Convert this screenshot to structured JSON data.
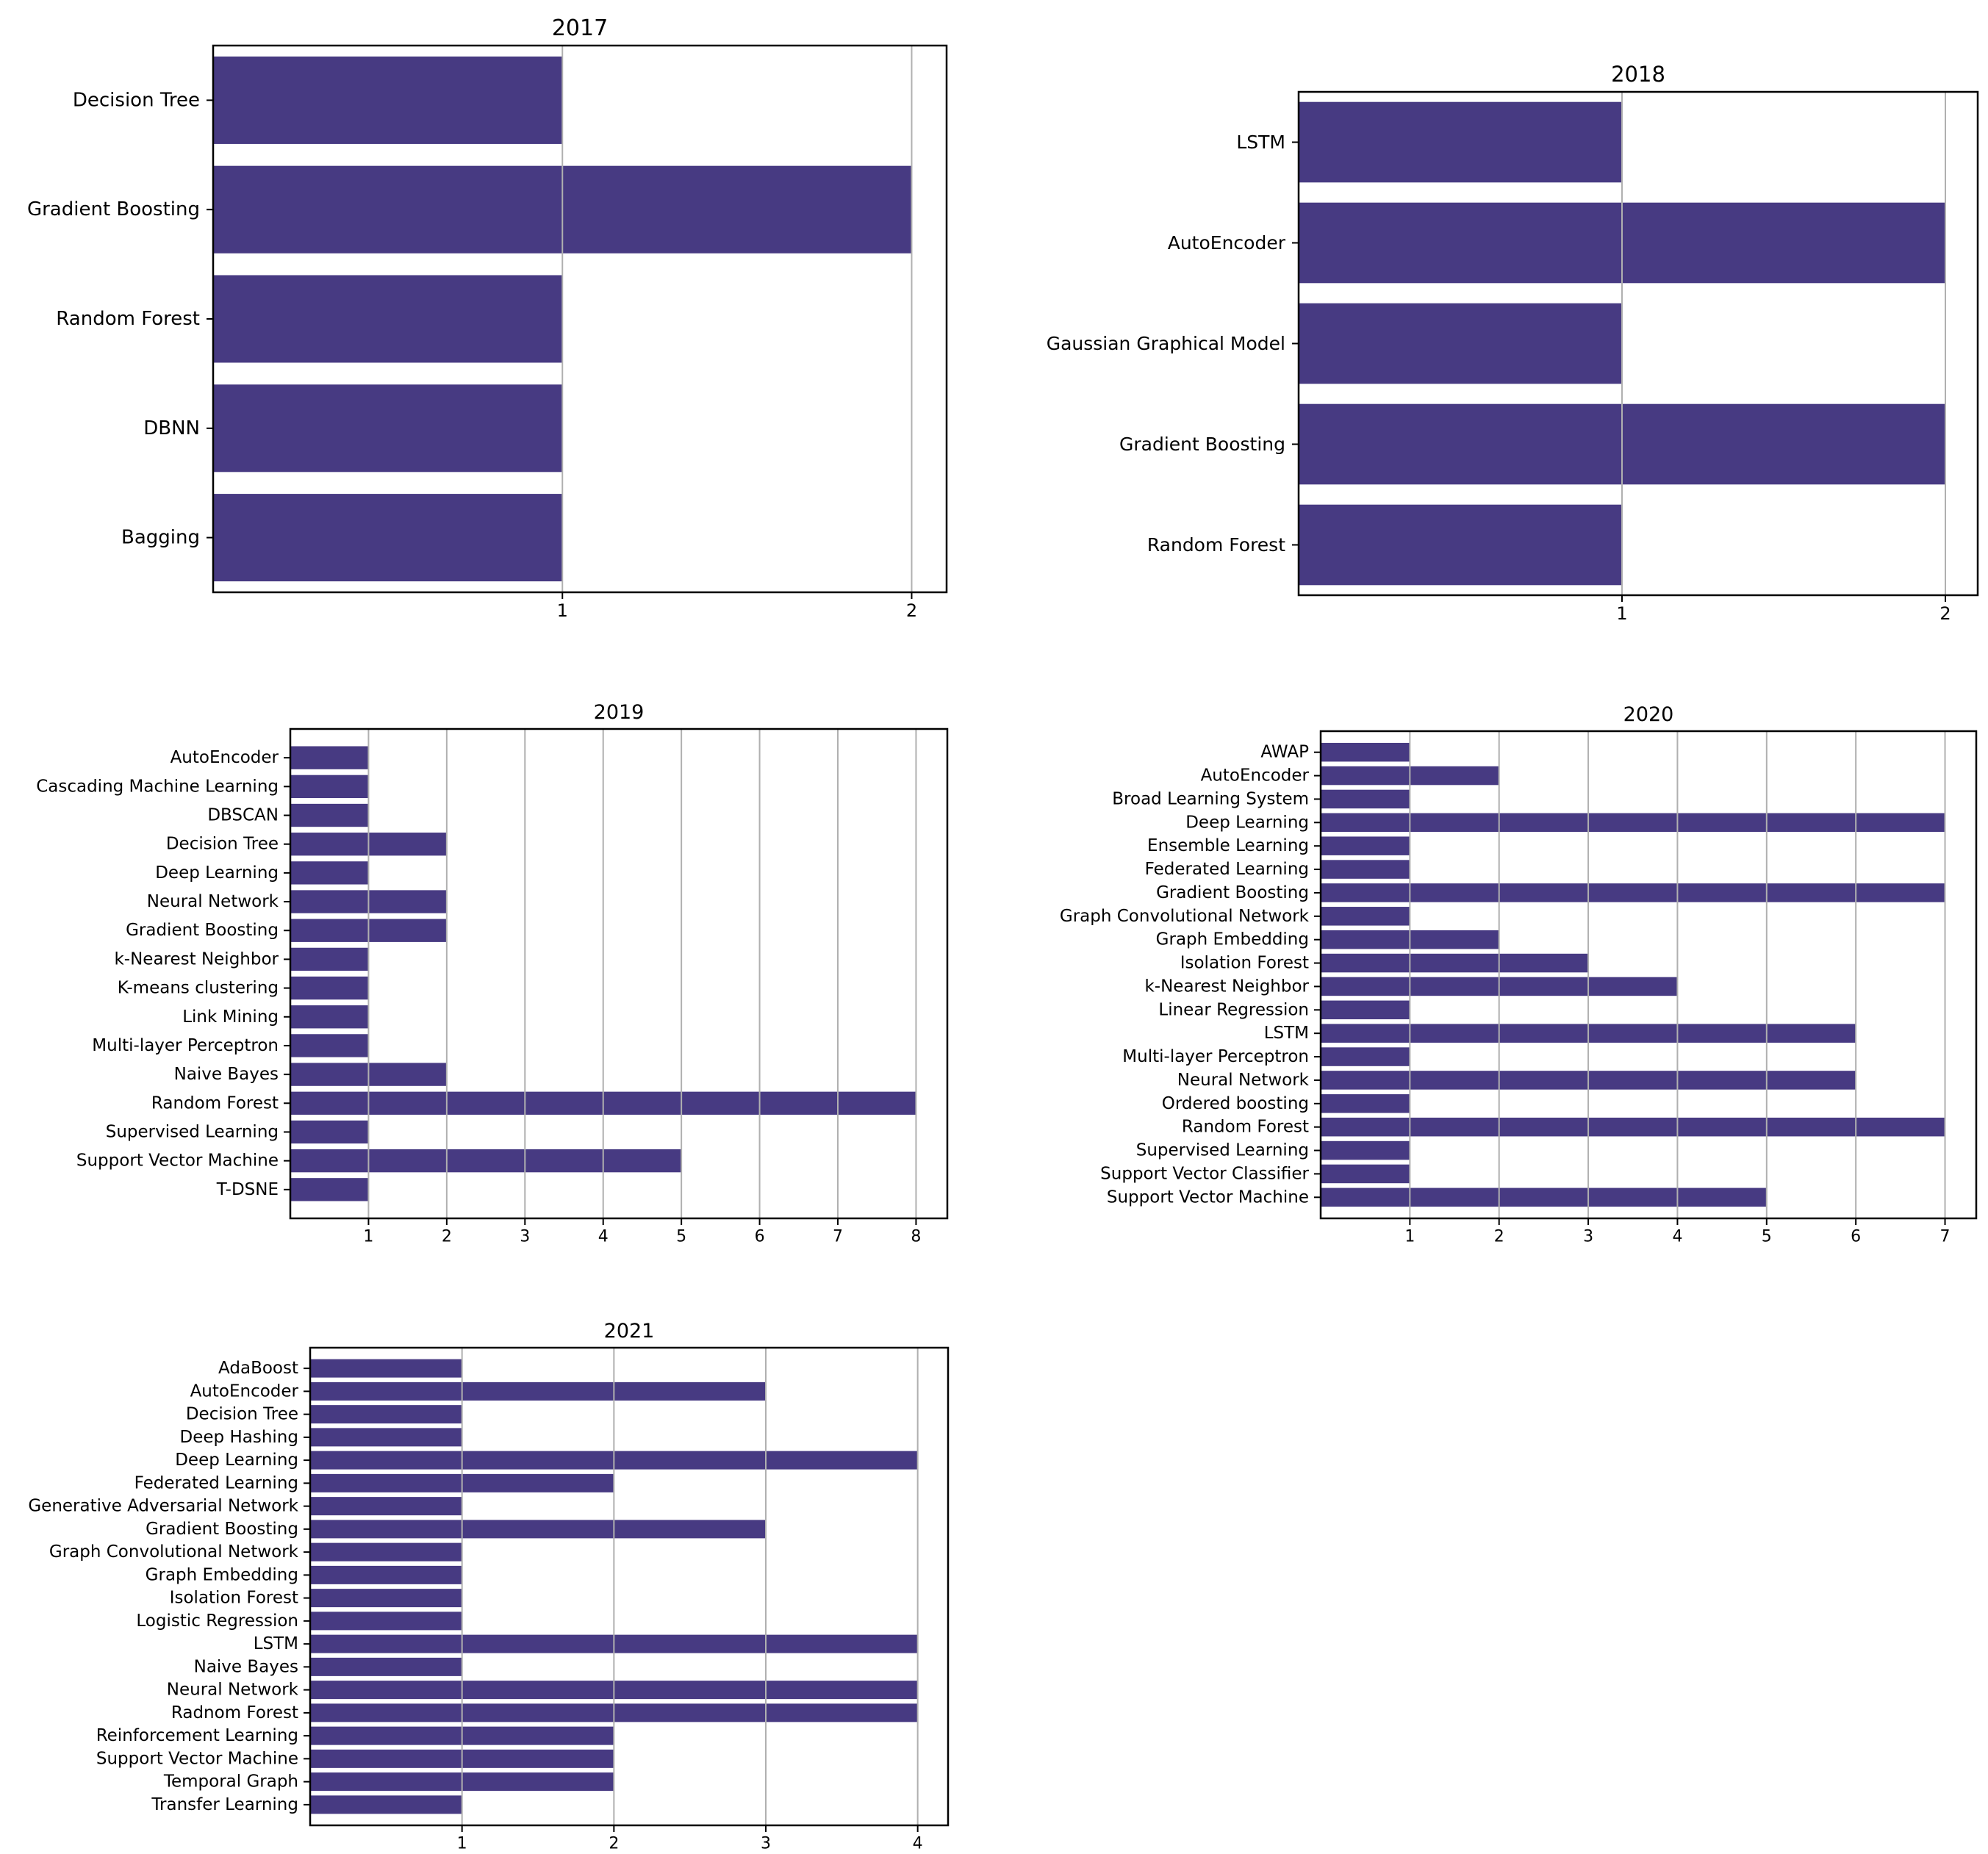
{
  "colors": {
    "bar": "#473a82",
    "grid": "#b0b0b0",
    "frame": "#000000",
    "background": "#ffffff"
  },
  "chart_data": [
    {
      "type": "bar",
      "orientation": "horizontal",
      "title": "2017",
      "categories": [
        "Decision Tree",
        "Gradient Boosting",
        "Random Forest",
        "DBNN",
        "Bagging"
      ],
      "values": [
        1,
        2,
        1,
        1,
        1
      ],
      "xticks": [
        1,
        2
      ],
      "xlim": [
        0,
        2.1
      ],
      "grid": "x"
    },
    {
      "type": "bar",
      "orientation": "horizontal",
      "title": "2018",
      "categories": [
        "LSTM",
        "AutoEncoder",
        "Gaussian Graphical Model",
        "Gradient Boosting",
        "Random Forest"
      ],
      "values": [
        1,
        2,
        1,
        2,
        1
      ],
      "xticks": [
        1,
        2
      ],
      "xlim": [
        0,
        2.1
      ],
      "grid": "x"
    },
    {
      "type": "bar",
      "orientation": "horizontal",
      "title": "2019",
      "categories": [
        "AutoEncoder",
        "Cascading Machine Learning",
        "DBSCAN",
        "Decision Tree",
        "Deep Learning",
        "Neural Network",
        "Gradient Boosting",
        "k-Nearest Neighbor ",
        "K-means clustering",
        "Link Mining",
        "Multi-layer Perceptron",
        "Naive Bayes",
        "Random Forest",
        "Supervised Learning",
        "Support Vector Machine",
        "T-DSNE"
      ],
      "values": [
        1,
        1,
        1,
        2,
        1,
        2,
        2,
        1,
        1,
        1,
        1,
        2,
        8,
        1,
        5,
        1
      ],
      "xticks": [
        1,
        2,
        3,
        4,
        5,
        6,
        7,
        8
      ],
      "xlim": [
        0,
        8.4
      ],
      "grid": "x"
    },
    {
      "type": "bar",
      "orientation": "horizontal",
      "title": "2020",
      "categories": [
        "AWAP",
        "AutoEncoder",
        "Broad Learning System",
        "Deep Learning",
        "Ensemble Learning",
        "Federated Learning",
        "Gradient Boosting",
        "Graph Convolutional Network",
        "Graph Embedding",
        "Isolation Forest",
        "k-Nearest Neighbor",
        "Linear Regression",
        "LSTM",
        "Multi-layer Perceptron",
        "Neural Network",
        "Ordered boosting",
        "Random Forest",
        "Supervised Learning",
        "Support Vector Classifier",
        "Support Vector Machine"
      ],
      "values": [
        1,
        2,
        1,
        7,
        1,
        1,
        7,
        1,
        2,
        3,
        4,
        1,
        6,
        1,
        6,
        1,
        7,
        1,
        1,
        5
      ],
      "xticks": [
        1,
        2,
        3,
        4,
        5,
        6,
        7
      ],
      "xlim": [
        0,
        7.35
      ],
      "grid": "x"
    },
    {
      "type": "bar",
      "orientation": "horizontal",
      "title": "2021",
      "categories": [
        "AdaBoost",
        "AutoEncoder",
        "Decision Tree",
        "Deep Hashing",
        "Deep Learning",
        "Federated Learning",
        "Generative Adversarial Network",
        "Gradient Boosting",
        "Graph Convolutional Network",
        "Graph Embedding",
        "Isolation Forest",
        "Logistic Regression",
        "LSTM",
        "Naive Bayes",
        "Neural Network",
        "Radnom Forest",
        "Reinforcement Learning",
        "Support Vector Machine",
        "Temporal Graph",
        "Transfer Learning"
      ],
      "values": [
        1,
        3,
        1,
        1,
        4,
        2,
        1,
        3,
        1,
        1,
        1,
        1,
        4,
        1,
        4,
        4,
        2,
        2,
        2,
        1
      ],
      "xticks": [
        1,
        2,
        3,
        4
      ],
      "xlim": [
        0,
        4.2
      ],
      "grid": "x"
    }
  ]
}
